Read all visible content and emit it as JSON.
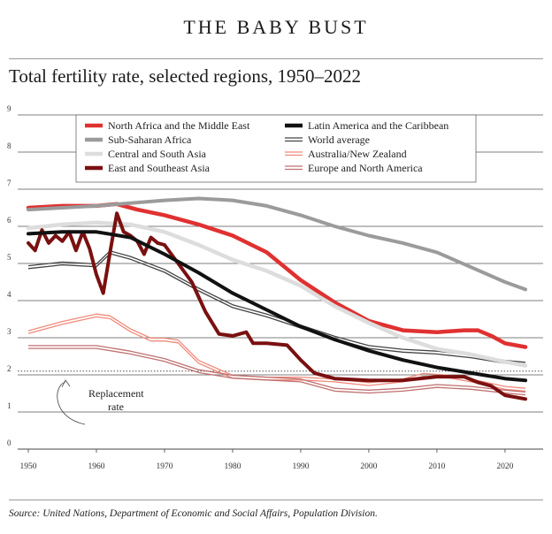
{
  "header": {
    "title": "THE BABY BUST",
    "subtitle": "Total fertility rate, selected regions, 1950–2022"
  },
  "footer": {
    "source": "Source: United Nations, Department of Economic and Social Affairs, Population Division."
  },
  "chart_data": {
    "type": "line",
    "xlim": [
      1950,
      2023
    ],
    "ylim": [
      0,
      9
    ],
    "x_ticks": [
      1950,
      1960,
      1970,
      1980,
      1990,
      2000,
      2010,
      2020
    ],
    "y_ticks": [
      0,
      1,
      2,
      3,
      4,
      5,
      6,
      7,
      8,
      9
    ],
    "grid": "horizontal",
    "legend_placement": "top",
    "annotation": {
      "text_line1": "Replacement",
      "text_line2": "rate",
      "reference_value": 2.1
    },
    "series": [
      {
        "name": "North Africa and the Middle East",
        "color": "#e03131",
        "width": 4.5,
        "style": "solid",
        "points": [
          [
            1950,
            6.5
          ],
          [
            1955,
            6.55
          ],
          [
            1960,
            6.55
          ],
          [
            1963,
            6.6
          ],
          [
            1966,
            6.45
          ],
          [
            1970,
            6.3
          ],
          [
            1975,
            6.05
          ],
          [
            1980,
            5.75
          ],
          [
            1985,
            5.3
          ],
          [
            1990,
            4.55
          ],
          [
            1995,
            3.95
          ],
          [
            2000,
            3.45
          ],
          [
            2005,
            3.2
          ],
          [
            2010,
            3.15
          ],
          [
            2014,
            3.2
          ],
          [
            2016,
            3.2
          ],
          [
            2018,
            3.05
          ],
          [
            2020,
            2.85
          ],
          [
            2023,
            2.75
          ]
        ]
      },
      {
        "name": "Sub-Saharan Africa",
        "color": "#9b9b9b",
        "width": 4,
        "style": "solid",
        "points": [
          [
            1950,
            6.45
          ],
          [
            1960,
            6.55
          ],
          [
            1970,
            6.7
          ],
          [
            1975,
            6.75
          ],
          [
            1980,
            6.7
          ],
          [
            1985,
            6.55
          ],
          [
            1990,
            6.3
          ],
          [
            1995,
            6.0
          ],
          [
            2000,
            5.75
          ],
          [
            2005,
            5.55
          ],
          [
            2010,
            5.3
          ],
          [
            2015,
            4.9
          ],
          [
            2020,
            4.5
          ],
          [
            2023,
            4.3
          ]
        ]
      },
      {
        "name": "Central and South Asia",
        "color": "#dddddd",
        "width": 4.5,
        "style": "solid",
        "points": [
          [
            1950,
            5.95
          ],
          [
            1955,
            6.05
          ],
          [
            1960,
            6.1
          ],
          [
            1965,
            6.05
          ],
          [
            1970,
            5.85
          ],
          [
            1975,
            5.5
          ],
          [
            1980,
            5.1
          ],
          [
            1985,
            4.8
          ],
          [
            1990,
            4.4
          ],
          [
            1995,
            3.85
          ],
          [
            2000,
            3.4
          ],
          [
            2005,
            3.0
          ],
          [
            2010,
            2.7
          ],
          [
            2015,
            2.55
          ],
          [
            2020,
            2.35
          ],
          [
            2023,
            2.25
          ]
        ]
      },
      {
        "name": "East and Southeast Asia",
        "color": "#7a1010",
        "width": 4,
        "style": "solid",
        "points": [
          [
            1950,
            5.55
          ],
          [
            1951,
            5.35
          ],
          [
            1952,
            5.9
          ],
          [
            1953,
            5.55
          ],
          [
            1954,
            5.75
          ],
          [
            1955,
            5.6
          ],
          [
            1956,
            5.85
          ],
          [
            1957,
            5.35
          ],
          [
            1958,
            5.85
          ],
          [
            1959,
            5.4
          ],
          [
            1960,
            4.7
          ],
          [
            1961,
            4.2
          ],
          [
            1962,
            5.3
          ],
          [
            1963,
            6.35
          ],
          [
            1964,
            5.85
          ],
          [
            1965,
            5.75
          ],
          [
            1966,
            5.6
          ],
          [
            1967,
            5.25
          ],
          [
            1968,
            5.7
          ],
          [
            1969,
            5.55
          ],
          [
            1970,
            5.5
          ],
          [
            1972,
            5.0
          ],
          [
            1974,
            4.5
          ],
          [
            1976,
            3.7
          ],
          [
            1978,
            3.1
          ],
          [
            1980,
            3.05
          ],
          [
            1982,
            3.15
          ],
          [
            1983,
            2.85
          ],
          [
            1985,
            2.85
          ],
          [
            1988,
            2.8
          ],
          [
            1990,
            2.4
          ],
          [
            1992,
            2.05
          ],
          [
            1995,
            1.9
          ],
          [
            2000,
            1.85
          ],
          [
            2005,
            1.85
          ],
          [
            2010,
            1.95
          ],
          [
            2014,
            1.95
          ],
          [
            2016,
            1.8
          ],
          [
            2018,
            1.7
          ],
          [
            2020,
            1.45
          ],
          [
            2023,
            1.35
          ]
        ]
      },
      {
        "name": "Latin America and the Caribbean",
        "color": "#111111",
        "width": 4,
        "style": "solid",
        "points": [
          [
            1950,
            5.8
          ],
          [
            1955,
            5.85
          ],
          [
            1960,
            5.85
          ],
          [
            1965,
            5.7
          ],
          [
            1970,
            5.25
          ],
          [
            1975,
            4.75
          ],
          [
            1980,
            4.2
          ],
          [
            1985,
            3.75
          ],
          [
            1990,
            3.3
          ],
          [
            1995,
            2.95
          ],
          [
            2000,
            2.65
          ],
          [
            2005,
            2.4
          ],
          [
            2010,
            2.2
          ],
          [
            2015,
            2.05
          ],
          [
            2020,
            1.9
          ],
          [
            2023,
            1.85
          ]
        ]
      },
      {
        "name": "World average",
        "color": "#444444",
        "width": 1.3,
        "style": "double",
        "points": [
          [
            1950,
            4.9
          ],
          [
            1955,
            5.0
          ],
          [
            1960,
            4.95
          ],
          [
            1962,
            5.3
          ],
          [
            1965,
            5.15
          ],
          [
            1970,
            4.8
          ],
          [
            1975,
            4.3
          ],
          [
            1980,
            3.85
          ],
          [
            1985,
            3.6
          ],
          [
            1990,
            3.3
          ],
          [
            1995,
            3.0
          ],
          [
            2000,
            2.75
          ],
          [
            2005,
            2.65
          ],
          [
            2010,
            2.6
          ],
          [
            2015,
            2.5
          ],
          [
            2020,
            2.35
          ],
          [
            2023,
            2.3
          ]
        ]
      },
      {
        "name": "Australia/New Zealand",
        "color": "#f08a7a",
        "width": 1.3,
        "style": "double",
        "points": [
          [
            1950,
            3.15
          ],
          [
            1955,
            3.4
          ],
          [
            1960,
            3.6
          ],
          [
            1962,
            3.55
          ],
          [
            1965,
            3.2
          ],
          [
            1968,
            2.95
          ],
          [
            1970,
            2.95
          ],
          [
            1972,
            2.9
          ],
          [
            1975,
            2.35
          ],
          [
            1980,
            1.95
          ],
          [
            1985,
            1.9
          ],
          [
            1990,
            1.9
          ],
          [
            1995,
            1.85
          ],
          [
            2000,
            1.75
          ],
          [
            2005,
            1.85
          ],
          [
            2008,
            2.0
          ],
          [
            2012,
            1.95
          ],
          [
            2015,
            1.85
          ],
          [
            2020,
            1.65
          ],
          [
            2023,
            1.6
          ]
        ]
      },
      {
        "name": "Europe and North America",
        "color": "#c07070",
        "width": 1.3,
        "style": "double",
        "points": [
          [
            1950,
            2.75
          ],
          [
            1955,
            2.75
          ],
          [
            1960,
            2.75
          ],
          [
            1965,
            2.6
          ],
          [
            1970,
            2.4
          ],
          [
            1975,
            2.1
          ],
          [
            1980,
            1.95
          ],
          [
            1985,
            1.9
          ],
          [
            1990,
            1.85
          ],
          [
            1995,
            1.6
          ],
          [
            2000,
            1.55
          ],
          [
            2005,
            1.6
          ],
          [
            2010,
            1.7
          ],
          [
            2015,
            1.65
          ],
          [
            2020,
            1.55
          ],
          [
            2023,
            1.5
          ]
        ]
      }
    ]
  }
}
